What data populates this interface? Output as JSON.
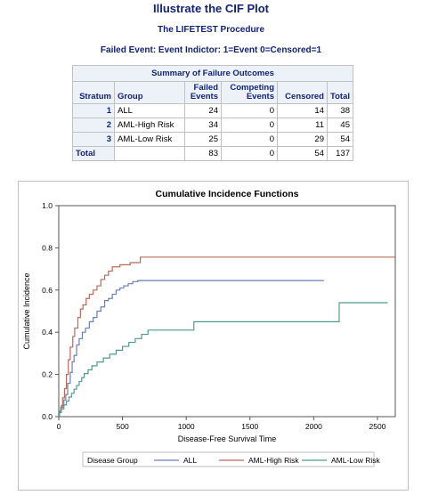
{
  "titles": {
    "main": "Illustrate the CIF Plot",
    "procedure": "The LIFETEST Procedure",
    "event": "Failed Event: Event Indictor: 1=Event 0=Censored=1"
  },
  "summary_table": {
    "caption": "Summary of Failure Outcomes",
    "headers": {
      "stratum": "Stratum",
      "group": "Group",
      "failed_1": "Failed",
      "failed_2": "Events",
      "competing_1": "Competing",
      "competing_2": "Events",
      "censored": "Censored",
      "total": "Total"
    },
    "rows": [
      {
        "stratum": "1",
        "group": "ALL",
        "failed": "24",
        "competing": "0",
        "censored": "14",
        "total": "38"
      },
      {
        "stratum": "2",
        "group": "AML-High Risk",
        "failed": "34",
        "competing": "0",
        "censored": "11",
        "total": "45"
      },
      {
        "stratum": "3",
        "group": "AML-Low Risk",
        "failed": "25",
        "competing": "0",
        "censored": "29",
        "total": "54"
      }
    ],
    "total_row": {
      "label": "Total",
      "failed": "83",
      "competing": "0",
      "censored": "54",
      "total": "137"
    }
  },
  "chart_data": {
    "type": "line",
    "step": true,
    "title": "Cumulative Incidence Functions",
    "xlabel": "Disease-Free Survival Time",
    "ylabel": "Cumulative Incidence",
    "xlim": [
      0,
      2640
    ],
    "ylim": [
      0,
      1.0
    ],
    "xticks": [
      "0",
      "500",
      "1000",
      "1500",
      "2000",
      "2500"
    ],
    "yticks": [
      "0.0",
      "0.2",
      "0.4",
      "0.6",
      "0.8",
      "1.0"
    ],
    "legend_title": "Disease Group",
    "legend_position": "bottom",
    "series": [
      {
        "name": "ALL",
        "color": "#6b7fb8",
        "x": [
          0,
          5,
          20,
          40,
          55,
          70,
          90,
          105,
          120,
          140,
          160,
          185,
          210,
          240,
          270,
          300,
          330,
          360,
          390,
          420,
          450,
          480,
          510,
          545,
          580,
          620,
          660,
          2080
        ],
        "y": [
          0,
          0.026,
          0.053,
          0.079,
          0.105,
          0.158,
          0.21,
          0.26,
          0.29,
          0.34,
          0.37,
          0.4,
          0.42,
          0.45,
          0.47,
          0.5,
          0.52,
          0.55,
          0.56,
          0.58,
          0.6,
          0.61,
          0.62,
          0.63,
          0.64,
          0.645,
          0.645,
          0.645
        ]
      },
      {
        "name": "AML-High Risk",
        "color": "#b86b5a",
        "x": [
          0,
          5,
          15,
          30,
          45,
          60,
          75,
          90,
          110,
          125,
          150,
          170,
          190,
          215,
          240,
          270,
          300,
          330,
          360,
          390,
          420,
          450,
          480,
          520,
          560,
          600,
          640,
          2640
        ],
        "y": [
          0,
          0.022,
          0.044,
          0.089,
          0.133,
          0.2,
          0.27,
          0.33,
          0.38,
          0.42,
          0.47,
          0.51,
          0.53,
          0.56,
          0.58,
          0.6,
          0.62,
          0.65,
          0.67,
          0.69,
          0.71,
          0.71,
          0.72,
          0.72,
          0.73,
          0.73,
          0.756,
          0.756
        ]
      },
      {
        "name": "AML-Low Risk",
        "color": "#4f9b8b",
        "x": [
          0,
          5,
          20,
          40,
          60,
          80,
          100,
          120,
          140,
          160,
          180,
          200,
          230,
          260,
          300,
          350,
          400,
          450,
          500,
          550,
          600,
          650,
          700,
          850,
          1060,
          1400,
          2200,
          2580
        ],
        "y": [
          0,
          0.019,
          0.037,
          0.056,
          0.074,
          0.093,
          0.111,
          0.13,
          0.148,
          0.167,
          0.185,
          0.204,
          0.222,
          0.241,
          0.259,
          0.278,
          0.296,
          0.315,
          0.333,
          0.352,
          0.37,
          0.39,
          0.41,
          0.41,
          0.45,
          0.45,
          0.54,
          0.54
        ]
      }
    ]
  }
}
